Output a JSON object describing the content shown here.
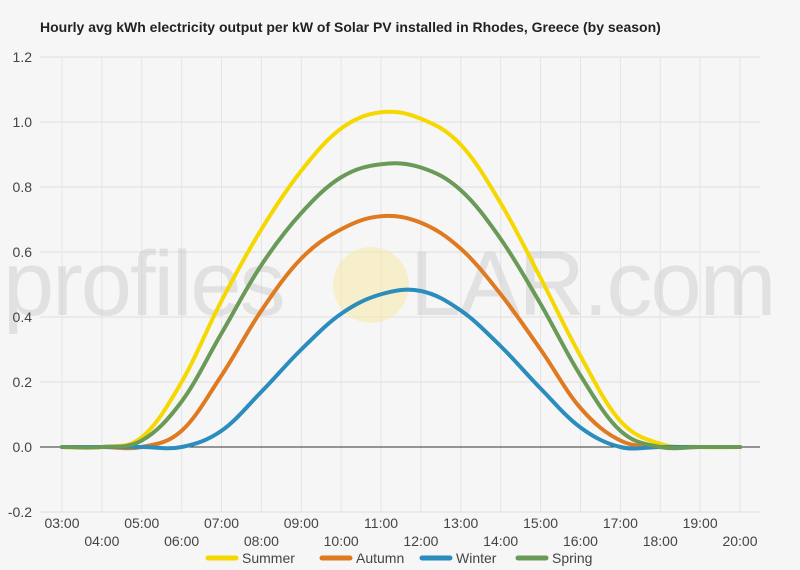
{
  "chart_data": {
    "type": "line",
    "title": "Hourly avg kWh electricity output per kW of Solar PV installed in Rhodes, Greece (by season)",
    "xlabel": "",
    "ylabel": "",
    "ylim": [
      -0.2,
      1.2
    ],
    "yticks": [
      "-0.2",
      "0.0",
      "0.2",
      "0.4",
      "0.6",
      "0.8",
      "1.0",
      "1.2"
    ],
    "categories": [
      "03:00",
      "04:00",
      "05:00",
      "06:00",
      "07:00",
      "08:00",
      "09:00",
      "10:00",
      "11:00",
      "12:00",
      "13:00",
      "14:00",
      "15:00",
      "16:00",
      "17:00",
      "18:00",
      "19:00",
      "20:00"
    ],
    "grid": true,
    "legend_position": "bottom",
    "series": [
      {
        "name": "Summer",
        "color": "#f5d800",
        "values": [
          0.0,
          0.0,
          0.03,
          0.2,
          0.45,
          0.67,
          0.85,
          0.98,
          1.03,
          1.01,
          0.93,
          0.75,
          0.52,
          0.28,
          0.08,
          0.01,
          0.0,
          0.0
        ]
      },
      {
        "name": "Autumn",
        "color": "#e07a20",
        "values": [
          0.0,
          0.0,
          0.0,
          0.05,
          0.22,
          0.42,
          0.58,
          0.67,
          0.71,
          0.69,
          0.61,
          0.47,
          0.3,
          0.12,
          0.02,
          0.0,
          0.0,
          0.0
        ]
      },
      {
        "name": "Winter",
        "color": "#2b8cbe",
        "values": [
          0.0,
          0.0,
          0.0,
          0.0,
          0.05,
          0.17,
          0.3,
          0.41,
          0.47,
          0.48,
          0.42,
          0.31,
          0.18,
          0.06,
          0.0,
          0.0,
          0.0,
          0.0
        ]
      },
      {
        "name": "Spring",
        "color": "#6a9a58",
        "values": [
          0.0,
          0.0,
          0.02,
          0.14,
          0.35,
          0.56,
          0.72,
          0.83,
          0.87,
          0.86,
          0.79,
          0.64,
          0.44,
          0.22,
          0.05,
          0.0,
          0.0,
          0.0
        ]
      }
    ]
  },
  "watermark": {
    "part1": "profiles",
    "part2": "LAR.com"
  }
}
